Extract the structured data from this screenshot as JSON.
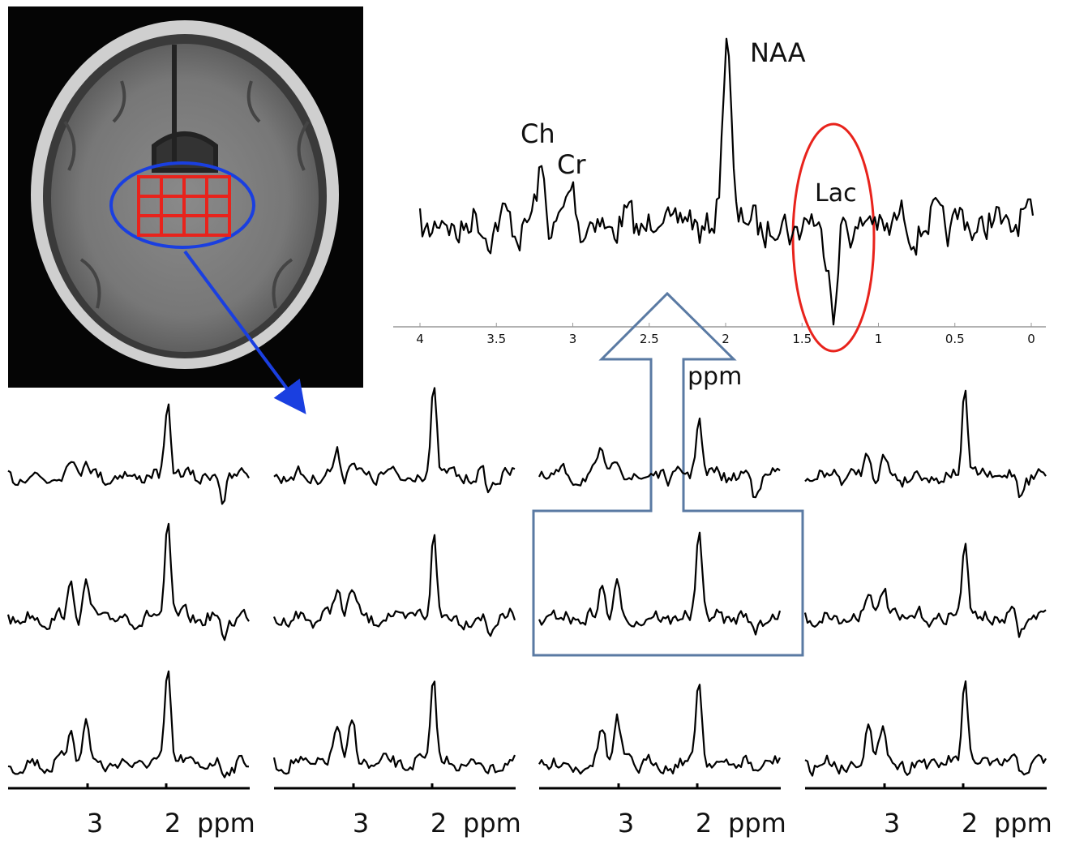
{
  "top_spectrum": {
    "peak_labels": {
      "naa": "NAA",
      "ch": "Ch",
      "cr": "Cr",
      "lac": "Lac"
    },
    "axis_ticks": [
      "4",
      "3.5",
      "3",
      "2.5",
      "2",
      "1.5",
      "1",
      "0.5",
      "0"
    ],
    "axis_label": "ppm"
  },
  "grid_axes": [
    {
      "tick_3": "3",
      "tick_2": "2",
      "unit": "ppm"
    },
    {
      "tick_3": "3",
      "tick_2": "2",
      "unit": "ppm"
    },
    {
      "tick_3": "3",
      "tick_2": "2",
      "unit": "ppm"
    },
    {
      "tick_3": "3",
      "tick_2": "2",
      "unit": "ppm"
    }
  ]
}
